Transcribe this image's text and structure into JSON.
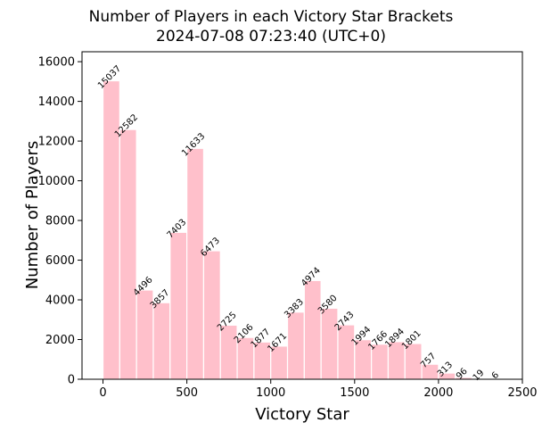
{
  "chart_data": {
    "type": "bar",
    "title": "Number of Players in each Victory Star Brackets",
    "subtitle": "2024-07-08 07:23:40 (UTC+0)",
    "xlabel": "Victory Star",
    "ylabel": "Number of Players",
    "bar_color": "#ffc0cb",
    "edge_color": "#ffffff",
    "xlim": [
      -125,
      2500
    ],
    "ylim": [
      0,
      16500
    ],
    "xticks": [
      0,
      500,
      1000,
      1500,
      2000,
      2500
    ],
    "yticks": [
      0,
      2000,
      4000,
      6000,
      8000,
      10000,
      12000,
      14000,
      16000
    ],
    "bin_width": 100,
    "bin_starts": [
      0,
      100,
      200,
      300,
      400,
      500,
      600,
      700,
      800,
      900,
      1000,
      1100,
      1200,
      1300,
      1400,
      1500,
      1600,
      1700,
      1800,
      1900,
      2000,
      2100,
      2200,
      2300
    ],
    "values": [
      15037,
      12582,
      4496,
      3857,
      7403,
      11633,
      6473,
      2725,
      2106,
      1877,
      1671,
      3383,
      4974,
      3580,
      2743,
      1994,
      1766,
      1894,
      1801,
      757,
      313,
      96,
      19,
      6
    ],
    "grid": false,
    "legend": "none"
  }
}
